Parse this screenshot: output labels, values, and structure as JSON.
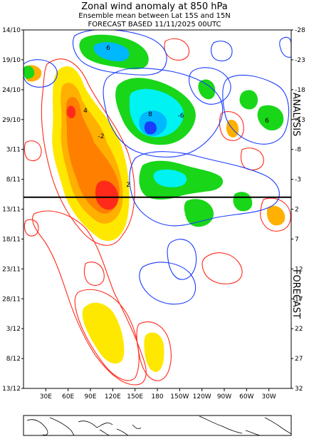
{
  "header": {
    "title": "Zonal wind anomaly at 850 hPa",
    "subtitle": "Ensemble mean between  Lat 15S and 15N",
    "basis": "FORECAST  BASED 11/11/2025 00UTC"
  },
  "chart_data": {
    "type": "heatmap",
    "title": "Zonal wind anomaly at 850 hPa",
    "subtitle": "Ensemble mean between  Lat 15S and 15N",
    "x_tick_labels": [
      "30E",
      "60E",
      "90E",
      "120E",
      "150E",
      "180",
      "150W",
      "120W",
      "90W",
      "60W",
      "30W"
    ],
    "x_tick_lon": [
      30,
      60,
      90,
      120,
      150,
      180,
      210,
      240,
      270,
      300,
      330
    ],
    "xlim_lon": [
      0,
      360
    ],
    "y_left_tick_labels": [
      "14/10",
      "19/10",
      "24/10",
      "29/10",
      "3/11",
      "8/11",
      "13/11",
      "18/11",
      "23/11",
      "28/11",
      "3/12",
      "8/12",
      "13/12"
    ],
    "y_right_tick_labels": [
      "-28",
      "-23",
      "-18",
      "-13",
      "-8",
      "-3",
      "2",
      "7",
      "12",
      "17",
      "22",
      "27",
      "32"
    ],
    "y_right_values": [
      -28,
      -23,
      -18,
      -13,
      -8,
      -3,
      2,
      7,
      12,
      17,
      22,
      27,
      32
    ],
    "forecast_start_day": 0,
    "sections": [
      "ANALYSIS",
      "FORECAST"
    ],
    "contour_labels": [
      "6",
      "4",
      "8",
      "-6",
      "-2",
      "2"
    ],
    "positive_anomaly_colors": [
      "#ff2a1a",
      "#ff7f00",
      "#ffb000",
      "#ffe800",
      "#ff4a1a"
    ],
    "negative_anomaly_colors": [
      "#1a3cff",
      "#00b8ff",
      "#19d619",
      "#00f2f2"
    ],
    "contour_colors": {
      "positive": "#ff2a1a",
      "negative": "#1a3cff"
    },
    "features": [
      {
        "label": "westerly anomaly (analysis, Indian Ocean / Maritime Continent)",
        "lon_range": [
          80,
          150
        ],
        "day_range": [
          -27,
          0
        ],
        "sign": "positive",
        "peak": 8
      },
      {
        "label": "easterly anomaly (analysis, West Pacific)",
        "lon_range": [
          140,
          230
        ],
        "day_range": [
          -28,
          -13
        ],
        "sign": "negative",
        "peak": -6
      },
      {
        "label": "easterly anomaly (analysis, central Pacific)",
        "lon_range": [
          165,
          270
        ],
        "day_range": [
          -8,
          3
        ],
        "sign": "negative",
        "peak": -4
      },
      {
        "label": "westerly anomaly (forecast, Maritime Continent)",
        "lon_range": [
          110,
          145
        ],
        "day_range": [
          14,
          24
        ],
        "sign": "positive",
        "peak": 2
      },
      {
        "label": "westerly anomaly (forecast, West Pacific)",
        "lon_range": [
          170,
          190
        ],
        "day_range": [
          21,
          27
        ],
        "sign": "positive",
        "peak": 2
      }
    ]
  },
  "map_inset": {
    "label": "world map strip 30S-30N"
  }
}
